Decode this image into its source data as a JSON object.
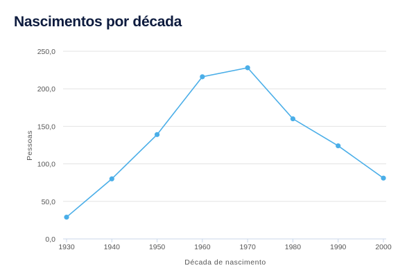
{
  "chart_data": {
    "type": "line",
    "title": "Nascimentos por década",
    "xlabel": "Década de nascimento",
    "ylabel": "Pessoas",
    "categories": [
      "1930",
      "1940",
      "1950",
      "1960",
      "1970",
      "1980",
      "1990",
      "2000"
    ],
    "values": [
      29,
      80,
      139,
      216,
      228,
      160,
      124,
      81
    ],
    "ylim": [
      0,
      250
    ],
    "yticks": [
      "0,0",
      "50,0",
      "100,0",
      "150,0",
      "200,0",
      "250,0"
    ],
    "grid": true,
    "color": "#4aaee8"
  }
}
